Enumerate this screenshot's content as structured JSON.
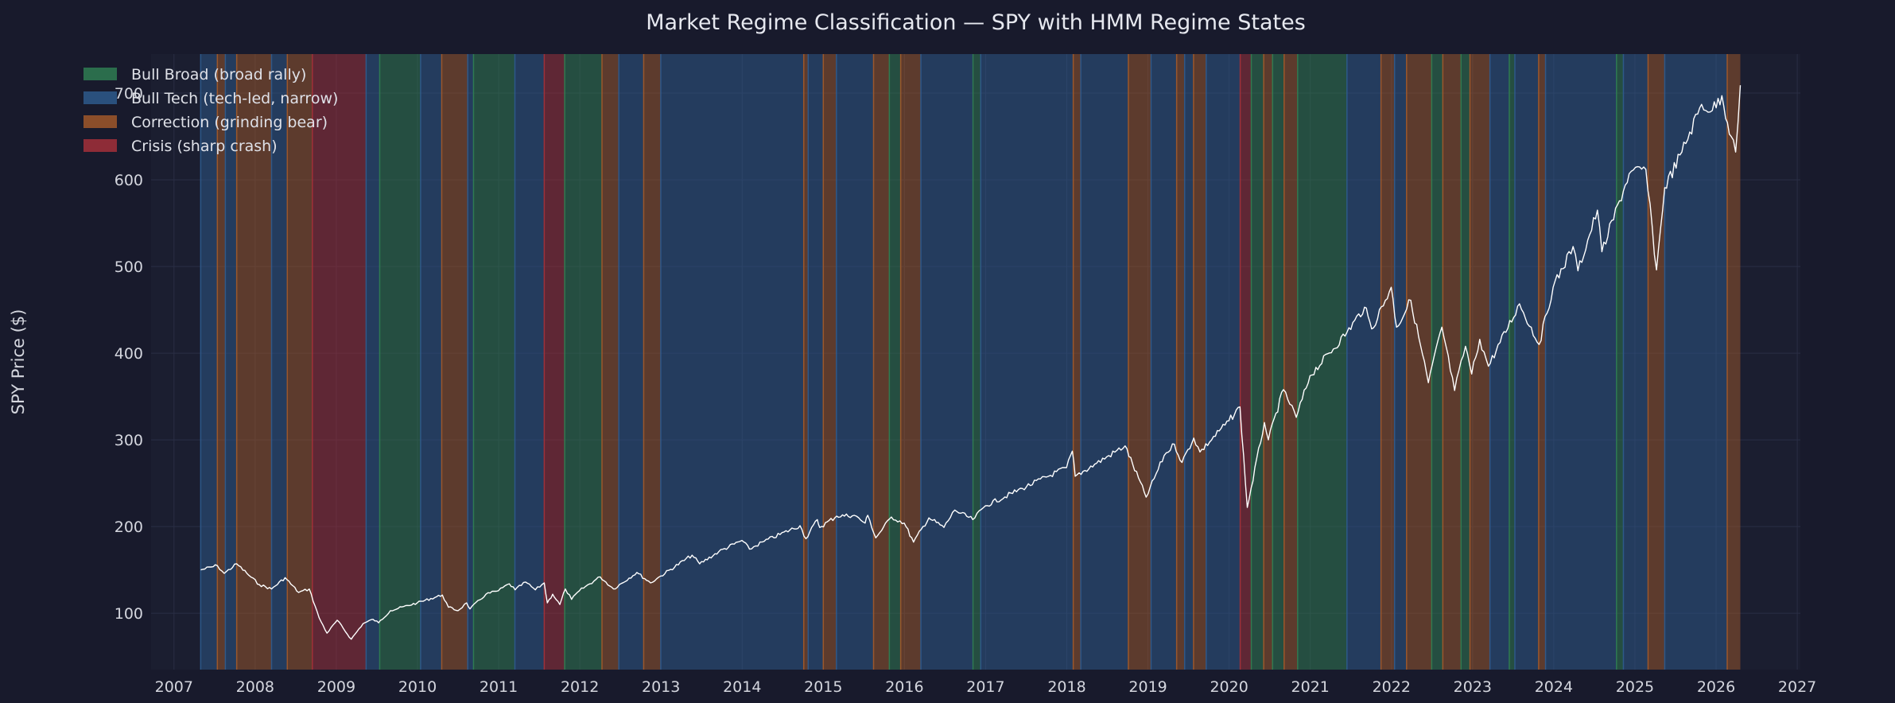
{
  "chart_data": {
    "type": "line",
    "title": "Market Regime Classification — SPY with HMM Regime States",
    "xlabel": "",
    "ylabel": "SPY Price ($)",
    "xlim": [
      "2006-09-20",
      "2027-01-15"
    ],
    "ylim": [
      35,
      745
    ],
    "x_ticks": [
      "2007",
      "2008",
      "2009",
      "2010",
      "2011",
      "2012",
      "2013",
      "2014",
      "2015",
      "2016",
      "2017",
      "2018",
      "2019",
      "2020",
      "2021",
      "2022",
      "2023",
      "2024",
      "2025",
      "2026",
      "2027"
    ],
    "y_ticks": [
      100,
      200,
      300,
      400,
      500,
      600,
      700
    ],
    "grid": true,
    "legend_position": "top-left",
    "regimes": [
      {
        "key": "bull_broad",
        "label": "Bull Broad (broad rally)",
        "color": "#2f7d52"
      },
      {
        "key": "bull_tech",
        "label": "Bull Tech (tech-led, narrow)",
        "color": "#2e5a8c"
      },
      {
        "key": "correction",
        "label": "Correction (grinding bear)",
        "color": "#a0582a"
      },
      {
        "key": "crisis",
        "label": "Crisis (sharp crash)",
        "color": "#a33039"
      }
    ],
    "regime_periods": [
      {
        "start": "2007-05-01",
        "end": "2007-07-15",
        "regime": "bull_tech"
      },
      {
        "start": "2007-07-15",
        "end": "2007-08-20",
        "regime": "correction"
      },
      {
        "start": "2007-08-20",
        "end": "2007-10-10",
        "regime": "bull_tech"
      },
      {
        "start": "2007-10-10",
        "end": "2008-03-15",
        "regime": "correction"
      },
      {
        "start": "2008-03-15",
        "end": "2008-05-25",
        "regime": "bull_tech"
      },
      {
        "start": "2008-05-25",
        "end": "2008-09-15",
        "regime": "correction"
      },
      {
        "start": "2008-09-15",
        "end": "2009-05-15",
        "regime": "crisis"
      },
      {
        "start": "2009-05-15",
        "end": "2009-07-15",
        "regime": "bull_tech"
      },
      {
        "start": "2009-07-15",
        "end": "2010-01-15",
        "regime": "bull_broad"
      },
      {
        "start": "2010-01-15",
        "end": "2010-04-20",
        "regime": "bull_tech"
      },
      {
        "start": "2010-04-20",
        "end": "2010-08-15",
        "regime": "correction"
      },
      {
        "start": "2010-08-15",
        "end": "2010-09-10",
        "regime": "bull_tech"
      },
      {
        "start": "2010-09-10",
        "end": "2011-03-15",
        "regime": "bull_broad"
      },
      {
        "start": "2011-03-15",
        "end": "2011-07-25",
        "regime": "bull_tech"
      },
      {
        "start": "2011-07-25",
        "end": "2011-10-25",
        "regime": "crisis"
      },
      {
        "start": "2011-10-25",
        "end": "2012-04-10",
        "regime": "bull_broad"
      },
      {
        "start": "2012-04-10",
        "end": "2012-06-25",
        "regime": "correction"
      },
      {
        "start": "2012-06-25",
        "end": "2012-10-15",
        "regime": "bull_tech"
      },
      {
        "start": "2012-10-15",
        "end": "2012-12-31",
        "regime": "correction"
      },
      {
        "start": "2012-12-31",
        "end": "2014-10-05",
        "regime": "bull_tech"
      },
      {
        "start": "2014-10-05",
        "end": "2014-10-25",
        "regime": "correction"
      },
      {
        "start": "2014-10-25",
        "end": "2015-01-01",
        "regime": "bull_tech"
      },
      {
        "start": "2015-01-01",
        "end": "2015-03-01",
        "regime": "correction"
      },
      {
        "start": "2015-03-01",
        "end": "2015-08-15",
        "regime": "bull_tech"
      },
      {
        "start": "2015-08-15",
        "end": "2015-10-25",
        "regime": "correction"
      },
      {
        "start": "2015-10-25",
        "end": "2015-12-15",
        "regime": "bull_broad"
      },
      {
        "start": "2015-12-15",
        "end": "2016-03-15",
        "regime": "correction"
      },
      {
        "start": "2016-03-15",
        "end": "2016-11-05",
        "regime": "bull_tech"
      },
      {
        "start": "2016-11-05",
        "end": "2016-12-10",
        "regime": "bull_broad"
      },
      {
        "start": "2016-12-10",
        "end": "2018-01-30",
        "regime": "bull_tech"
      },
      {
        "start": "2018-01-30",
        "end": "2018-03-05",
        "regime": "correction"
      },
      {
        "start": "2018-03-05",
        "end": "2018-10-05",
        "regime": "bull_tech"
      },
      {
        "start": "2018-10-05",
        "end": "2019-01-15",
        "regime": "correction"
      },
      {
        "start": "2019-01-15",
        "end": "2019-05-10",
        "regime": "bull_tech"
      },
      {
        "start": "2019-05-10",
        "end": "2019-06-15",
        "regime": "correction"
      },
      {
        "start": "2019-06-15",
        "end": "2019-07-25",
        "regime": "bull_tech"
      },
      {
        "start": "2019-07-25",
        "end": "2019-09-20",
        "regime": "correction"
      },
      {
        "start": "2019-09-20",
        "end": "2020-02-20",
        "regime": "bull_tech"
      },
      {
        "start": "2020-02-20",
        "end": "2020-04-10",
        "regime": "crisis"
      },
      {
        "start": "2020-04-10",
        "end": "2020-06-05",
        "regime": "bull_broad"
      },
      {
        "start": "2020-06-05",
        "end": "2020-07-15",
        "regime": "correction"
      },
      {
        "start": "2020-07-15",
        "end": "2020-09-05",
        "regime": "bull_broad"
      },
      {
        "start": "2020-09-05",
        "end": "2020-11-05",
        "regime": "correction"
      },
      {
        "start": "2020-11-05",
        "end": "2021-06-15",
        "regime": "bull_broad"
      },
      {
        "start": "2021-06-15",
        "end": "2021-11-15",
        "regime": "bull_tech"
      },
      {
        "start": "2021-11-15",
        "end": "2022-01-15",
        "regime": "correction"
      },
      {
        "start": "2022-01-15",
        "end": "2022-03-10",
        "regime": "bull_tech"
      },
      {
        "start": "2022-03-10",
        "end": "2022-07-01",
        "regime": "correction"
      },
      {
        "start": "2022-07-01",
        "end": "2022-08-20",
        "regime": "bull_broad"
      },
      {
        "start": "2022-08-20",
        "end": "2022-11-10",
        "regime": "correction"
      },
      {
        "start": "2022-11-10",
        "end": "2022-12-20",
        "regime": "bull_broad"
      },
      {
        "start": "2022-12-20",
        "end": "2023-03-20",
        "regime": "correction"
      },
      {
        "start": "2023-03-20",
        "end": "2023-06-15",
        "regime": "bull_tech"
      },
      {
        "start": "2023-06-15",
        "end": "2023-07-10",
        "regime": "bull_broad"
      },
      {
        "start": "2023-07-10",
        "end": "2023-10-25",
        "regime": "bull_tech"
      },
      {
        "start": "2023-10-25",
        "end": "2023-11-25",
        "regime": "correction"
      },
      {
        "start": "2023-11-25",
        "end": "2024-10-10",
        "regime": "bull_tech"
      },
      {
        "start": "2024-10-10",
        "end": "2024-11-10",
        "regime": "bull_broad"
      },
      {
        "start": "2024-11-10",
        "end": "2025-03-01",
        "regime": "bull_tech"
      },
      {
        "start": "2025-03-01",
        "end": "2025-05-15",
        "regime": "correction"
      },
      {
        "start": "2025-05-15",
        "end": "2026-02-20",
        "regime": "bull_tech"
      },
      {
        "start": "2026-02-20",
        "end": "2026-04-20",
        "regime": "correction"
      }
    ],
    "series": [
      {
        "name": "",
        "color": "#ffffff",
        "points": [
          [
            "2007-05-01",
            150
          ],
          [
            "2007-07-15",
            155
          ],
          [
            "2007-08-15",
            146
          ],
          [
            "2007-10-10",
            157
          ],
          [
            "2007-11-25",
            146
          ],
          [
            "2008-01-20",
            133
          ],
          [
            "2008-03-15",
            128
          ],
          [
            "2008-05-15",
            141
          ],
          [
            "2008-07-15",
            124
          ],
          [
            "2008-09-01",
            128
          ],
          [
            "2008-10-15",
            95
          ],
          [
            "2008-11-20",
            77
          ],
          [
            "2009-01-05",
            92
          ],
          [
            "2009-03-09",
            70
          ],
          [
            "2009-05-01",
            88
          ],
          [
            "2009-06-15",
            93
          ],
          [
            "2009-07-10",
            89
          ],
          [
            "2009-09-01",
            103
          ],
          [
            "2009-12-31",
            112
          ],
          [
            "2010-04-23",
            121
          ],
          [
            "2010-05-20",
            107
          ],
          [
            "2010-07-02",
            103
          ],
          [
            "2010-08-10",
            112
          ],
          [
            "2010-08-25",
            105
          ],
          [
            "2010-11-05",
            122
          ],
          [
            "2010-12-31",
            126
          ],
          [
            "2011-02-18",
            134
          ],
          [
            "2011-03-16",
            127
          ],
          [
            "2011-05-02",
            136
          ],
          [
            "2011-06-15",
            127
          ],
          [
            "2011-07-25",
            135
          ],
          [
            "2011-08-08",
            112
          ],
          [
            "2011-09-01",
            122
          ],
          [
            "2011-10-03",
            110
          ],
          [
            "2011-10-28",
            128
          ],
          [
            "2011-11-25",
            116
          ],
          [
            "2011-12-30",
            126
          ],
          [
            "2012-04-02",
            142
          ],
          [
            "2012-06-01",
            128
          ],
          [
            "2012-09-14",
            147
          ],
          [
            "2012-11-15",
            135
          ],
          [
            "2012-12-31",
            143
          ],
          [
            "2013-05-21",
            167
          ],
          [
            "2013-06-24",
            157
          ],
          [
            "2013-09-18",
            171
          ],
          [
            "2013-12-31",
            184
          ],
          [
            "2014-02-03",
            174
          ],
          [
            "2014-04-10",
            183
          ],
          [
            "2014-09-18",
            201
          ],
          [
            "2014-10-15",
            186
          ],
          [
            "2014-12-05",
            208
          ],
          [
            "2014-12-16",
            199
          ],
          [
            "2015-03-02",
            212
          ],
          [
            "2015-05-20",
            213
          ],
          [
            "2015-07-08",
            204
          ],
          [
            "2015-07-20",
            213
          ],
          [
            "2015-08-25",
            187
          ],
          [
            "2015-11-03",
            211
          ],
          [
            "2015-12-31",
            204
          ],
          [
            "2016-02-11",
            182
          ],
          [
            "2016-04-20",
            210
          ],
          [
            "2016-06-27",
            199
          ],
          [
            "2016-08-15",
            219
          ],
          [
            "2016-11-04",
            208
          ],
          [
            "2016-12-31",
            224
          ],
          [
            "2017-06-15",
            244
          ],
          [
            "2017-12-31",
            268
          ],
          [
            "2018-01-26",
            287
          ],
          [
            "2018-02-08",
            258
          ],
          [
            "2018-05-15",
            273
          ],
          [
            "2018-09-20",
            293
          ],
          [
            "2018-12-24",
            234
          ],
          [
            "2019-03-15",
            282
          ],
          [
            "2019-04-30",
            295
          ],
          [
            "2019-06-03",
            274
          ],
          [
            "2019-07-26",
            302
          ],
          [
            "2019-08-23",
            286
          ],
          [
            "2019-12-31",
            322
          ],
          [
            "2020-02-19",
            338
          ],
          [
            "2020-03-23",
            222
          ],
          [
            "2020-06-08",
            320
          ],
          [
            "2020-06-26",
            300
          ],
          [
            "2020-09-02",
            358
          ],
          [
            "2020-10-30",
            326
          ],
          [
            "2020-12-31",
            374
          ],
          [
            "2021-06-15",
            424
          ],
          [
            "2021-09-02",
            453
          ],
          [
            "2021-10-04",
            428
          ],
          [
            "2021-12-31",
            476
          ],
          [
            "2022-01-24",
            430
          ],
          [
            "2022-03-29",
            461
          ],
          [
            "2022-06-16",
            366
          ],
          [
            "2022-08-16",
            430
          ],
          [
            "2022-10-12",
            357
          ],
          [
            "2022-11-30",
            408
          ],
          [
            "2022-12-28",
            376
          ],
          [
            "2023-02-02",
            416
          ],
          [
            "2023-03-13",
            385
          ],
          [
            "2023-07-31",
            457
          ],
          [
            "2023-10-27",
            410
          ],
          [
            "2023-12-29",
            476
          ],
          [
            "2024-03-28",
            523
          ],
          [
            "2024-04-19",
            495
          ],
          [
            "2024-07-16",
            565
          ],
          [
            "2024-08-05",
            517
          ],
          [
            "2024-12-06",
            607
          ],
          [
            "2025-02-19",
            612
          ],
          [
            "2025-04-08",
            496
          ],
          [
            "2025-05-15",
            591
          ],
          [
            "2025-07-31",
            632
          ],
          [
            "2025-10-28",
            687
          ],
          [
            "2025-12-15",
            680
          ],
          [
            "2026-01-27",
            697
          ],
          [
            "2026-03-10",
            650
          ],
          [
            "2026-03-30",
            632
          ],
          [
            "2026-04-20",
            709
          ]
        ]
      }
    ]
  }
}
